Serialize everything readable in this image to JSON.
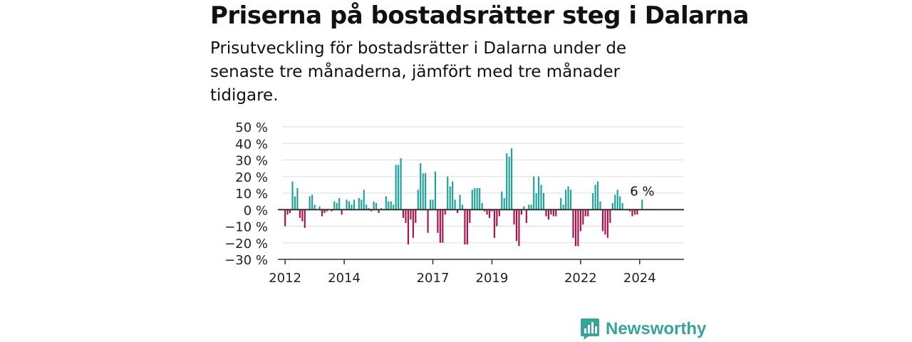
{
  "header": {
    "title": "Priserna på bostadsrätter steg i Dalarna",
    "subtitle": "Prisutveckling för bostadsrätter i Dalarna under de senaste tre månaderna, jämfört med tre månader tidigare."
  },
  "brand": {
    "name": "Newsworthy",
    "color": "#37a49a",
    "icon": "newsworthy-logo-icon"
  },
  "colors": {
    "positive": "#1aa39a",
    "negative": "#b20d47",
    "grid": "#dddddd",
    "axis": "#333333"
  },
  "chart_data": {
    "type": "bar",
    "title": "Priserna på bostadsrätter steg i Dalarna",
    "xlabel": "",
    "ylabel": "",
    "ylim": [
      -30,
      50
    ],
    "yticks": [
      50,
      40,
      30,
      20,
      10,
      0,
      -10,
      -20,
      -30
    ],
    "ytick_labels": [
      "50 %",
      "40 %",
      "30 %",
      "20 %",
      "10 %",
      "0 %",
      "−10 %",
      "−20 %",
      "−30 %"
    ],
    "xrange": [
      2011.9,
      2025.5
    ],
    "xticks": [
      {
        "value": 2012,
        "label": "2012"
      },
      {
        "value": 2014,
        "label": "2014"
      },
      {
        "value": 2017,
        "label": "2017"
      },
      {
        "value": 2019,
        "label": "2019"
      },
      {
        "value": 2022,
        "label": "2022"
      },
      {
        "value": 2024,
        "label": "2024"
      }
    ],
    "grid": true,
    "annotation": {
      "label": "6 %",
      "value": 6,
      "position": "last-bar"
    },
    "series": [
      {
        "start": "2012-01",
        "frequency": "monthly",
        "values": [
          -10,
          -3,
          -2,
          17,
          8,
          13,
          -5,
          -7,
          -11,
          0,
          8,
          9,
          3,
          0,
          2,
          -4,
          -2,
          -1,
          0,
          -1,
          5,
          4,
          7,
          -3,
          0,
          6,
          5,
          3,
          6,
          0,
          7,
          6,
          12,
          3,
          1,
          -1,
          5,
          4,
          -2,
          1,
          0,
          8,
          5,
          5,
          3,
          27,
          27,
          31,
          -5,
          -8,
          -21,
          -6,
          -17,
          -8,
          12,
          28,
          22,
          22,
          -14,
          6,
          6,
          23,
          -14,
          -20,
          -20,
          -3,
          20,
          14,
          17,
          6,
          -2,
          9,
          3,
          -21,
          -21,
          -8,
          12,
          13,
          13,
          13,
          4,
          -1,
          -3,
          -5,
          -1,
          -17,
          -10,
          -4,
          11,
          7,
          34,
          32,
          37,
          -9,
          -19,
          -22,
          -3,
          2,
          -8,
          3,
          3,
          20,
          10,
          20,
          15,
          10,
          -4,
          -6,
          -3,
          -4,
          -4,
          0,
          7,
          3,
          12,
          14,
          12,
          -17,
          -22,
          -22,
          -13,
          -9,
          -4,
          -4,
          0,
          10,
          15,
          17,
          5,
          -13,
          -15,
          -17,
          -8,
          4,
          9,
          12,
          8,
          4,
          0,
          0,
          -1,
          -4,
          -3,
          -3,
          0,
          6
        ]
      }
    ]
  }
}
